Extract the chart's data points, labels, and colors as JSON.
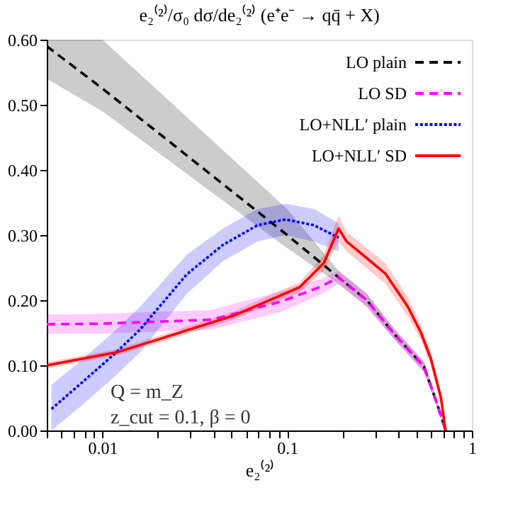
{
  "chart_data": {
    "type": "line",
    "title": "e₂⁽²⁾/σ₀ dσ/de₂⁽²⁾ (e⁺e⁻ → qq̄ + X)",
    "xlabel": "e₂⁽²⁾",
    "log": "x",
    "grid": false,
    "legend": "top right",
    "xlim": [
      0.005,
      1
    ],
    "ylim": [
      0,
      0.6
    ],
    "xticks": [
      {
        "value": 0.005,
        "label": null
      },
      {
        "value": 0.006,
        "label": null
      },
      {
        "value": 0.007,
        "label": null
      },
      {
        "value": 0.008,
        "label": null
      },
      {
        "value": 0.009,
        "label": null
      },
      0.01,
      {
        "value": 0.02,
        "label": null
      },
      {
        "value": 0.03,
        "label": null
      },
      {
        "value": 0.04,
        "label": null
      },
      {
        "value": 0.05,
        "label": null
      },
      {
        "value": 0.06,
        "label": null
      },
      {
        "value": 0.07,
        "label": null
      },
      {
        "value": 0.08,
        "label": null
      },
      {
        "value": 0.09,
        "label": null
      },
      0.1,
      {
        "value": 0.2,
        "label": null
      },
      {
        "value": 0.3,
        "label": null
      },
      {
        "value": 0.4,
        "label": null
      },
      {
        "value": 0.5,
        "label": null
      },
      {
        "value": 0.6,
        "label": null
      },
      {
        "value": 0.7,
        "label": null
      },
      {
        "value": 0.8,
        "label": null
      },
      {
        "value": 0.9,
        "label": null
      },
      1
    ],
    "yticks": [
      {
        "value": 0,
        "label": "0.00"
      },
      {
        "value": 0.1,
        "label": "0.10"
      },
      {
        "value": 0.2,
        "label": "0.20"
      },
      {
        "value": 0.3,
        "label": "0.30"
      },
      {
        "value": 0.4,
        "label": "0.40"
      },
      {
        "value": 0.5,
        "label": "0.50"
      },
      {
        "value": 0.6,
        "label": "0.60"
      }
    ],
    "annotations": [
      "Q = m_Z",
      "z_cut = 0.1, β = 0"
    ],
    "series": [
      {
        "name": "LO plain",
        "color": "#000000",
        "line_style": "dashed",
        "x": [
          0.005,
          0.01,
          0.1,
          0.19,
          0.27,
          0.38,
          0.55,
          0.65,
          0.72
        ],
        "values": [
          0.59,
          0.525,
          0.3,
          0.235,
          0.2,
          0.148,
          0.098,
          0.04,
          0
        ],
        "lower": [
          0.54,
          0.49,
          0.28,
          0.225,
          0.19,
          0.14,
          0.09,
          0.035,
          0
        ],
        "upper": [
          0.6,
          0.6,
          0.34,
          0.245,
          0.21,
          0.156,
          0.106,
          0.045,
          0
        ]
      },
      {
        "name": "LO SD",
        "color": "#ff00ff",
        "line_style": "dashed",
        "x": [
          0.005,
          0.01,
          0.039,
          0.093,
          0.15,
          0.19,
          0.27,
          0.38,
          0.55,
          0.65,
          0.72
        ],
        "values": [
          0.163,
          0.164,
          0.17,
          0.198,
          0.22,
          0.235,
          0.2,
          0.148,
          0.098,
          0.04,
          0
        ],
        "lower": [
          0.148,
          0.149,
          0.155,
          0.182,
          0.208,
          0.225,
          0.19,
          0.14,
          0.09,
          0.035,
          0
        ],
        "upper": [
          0.178,
          0.179,
          0.185,
          0.214,
          0.232,
          0.245,
          0.21,
          0.156,
          0.106,
          0.045,
          0
        ]
      },
      {
        "name": "LO+NLL′ plain",
        "color": "#0000ff",
        "line_style": "dotted",
        "x": [
          0.0053,
          0.0075,
          0.0119,
          0.016,
          0.0287,
          0.045,
          0.069,
          0.098,
          0.14,
          0.19
        ],
        "values": [
          0.033,
          0.07,
          0.12,
          0.155,
          0.24,
          0.285,
          0.315,
          0.324,
          0.315,
          0.296
        ],
        "lower": [
          0.0,
          0.035,
          0.085,
          0.12,
          0.21,
          0.26,
          0.29,
          0.3,
          0.29,
          0.275
        ],
        "upper": [
          0.07,
          0.105,
          0.155,
          0.19,
          0.27,
          0.31,
          0.34,
          0.348,
          0.34,
          0.318
        ]
      },
      {
        "name": "LO+NLL′ SD",
        "color": "#ff0000",
        "line_style": "solid",
        "x": [
          0.005,
          0.012,
          0.051,
          0.117,
          0.158,
          0.19,
          0.21,
          0.34,
          0.45,
          0.53,
          0.6,
          0.68,
          0.72
        ],
        "values": [
          0.1,
          0.12,
          0.176,
          0.22,
          0.257,
          0.31,
          0.29,
          0.241,
          0.19,
          0.15,
          0.11,
          0.05,
          0
        ],
        "lower": [
          0.095,
          0.115,
          0.17,
          0.212,
          0.245,
          0.29,
          0.275,
          0.225,
          0.175,
          0.138,
          0.1,
          0.042,
          0
        ],
        "upper": [
          0.105,
          0.125,
          0.182,
          0.228,
          0.27,
          0.33,
          0.305,
          0.257,
          0.205,
          0.162,
          0.12,
          0.058,
          0
        ]
      }
    ]
  }
}
